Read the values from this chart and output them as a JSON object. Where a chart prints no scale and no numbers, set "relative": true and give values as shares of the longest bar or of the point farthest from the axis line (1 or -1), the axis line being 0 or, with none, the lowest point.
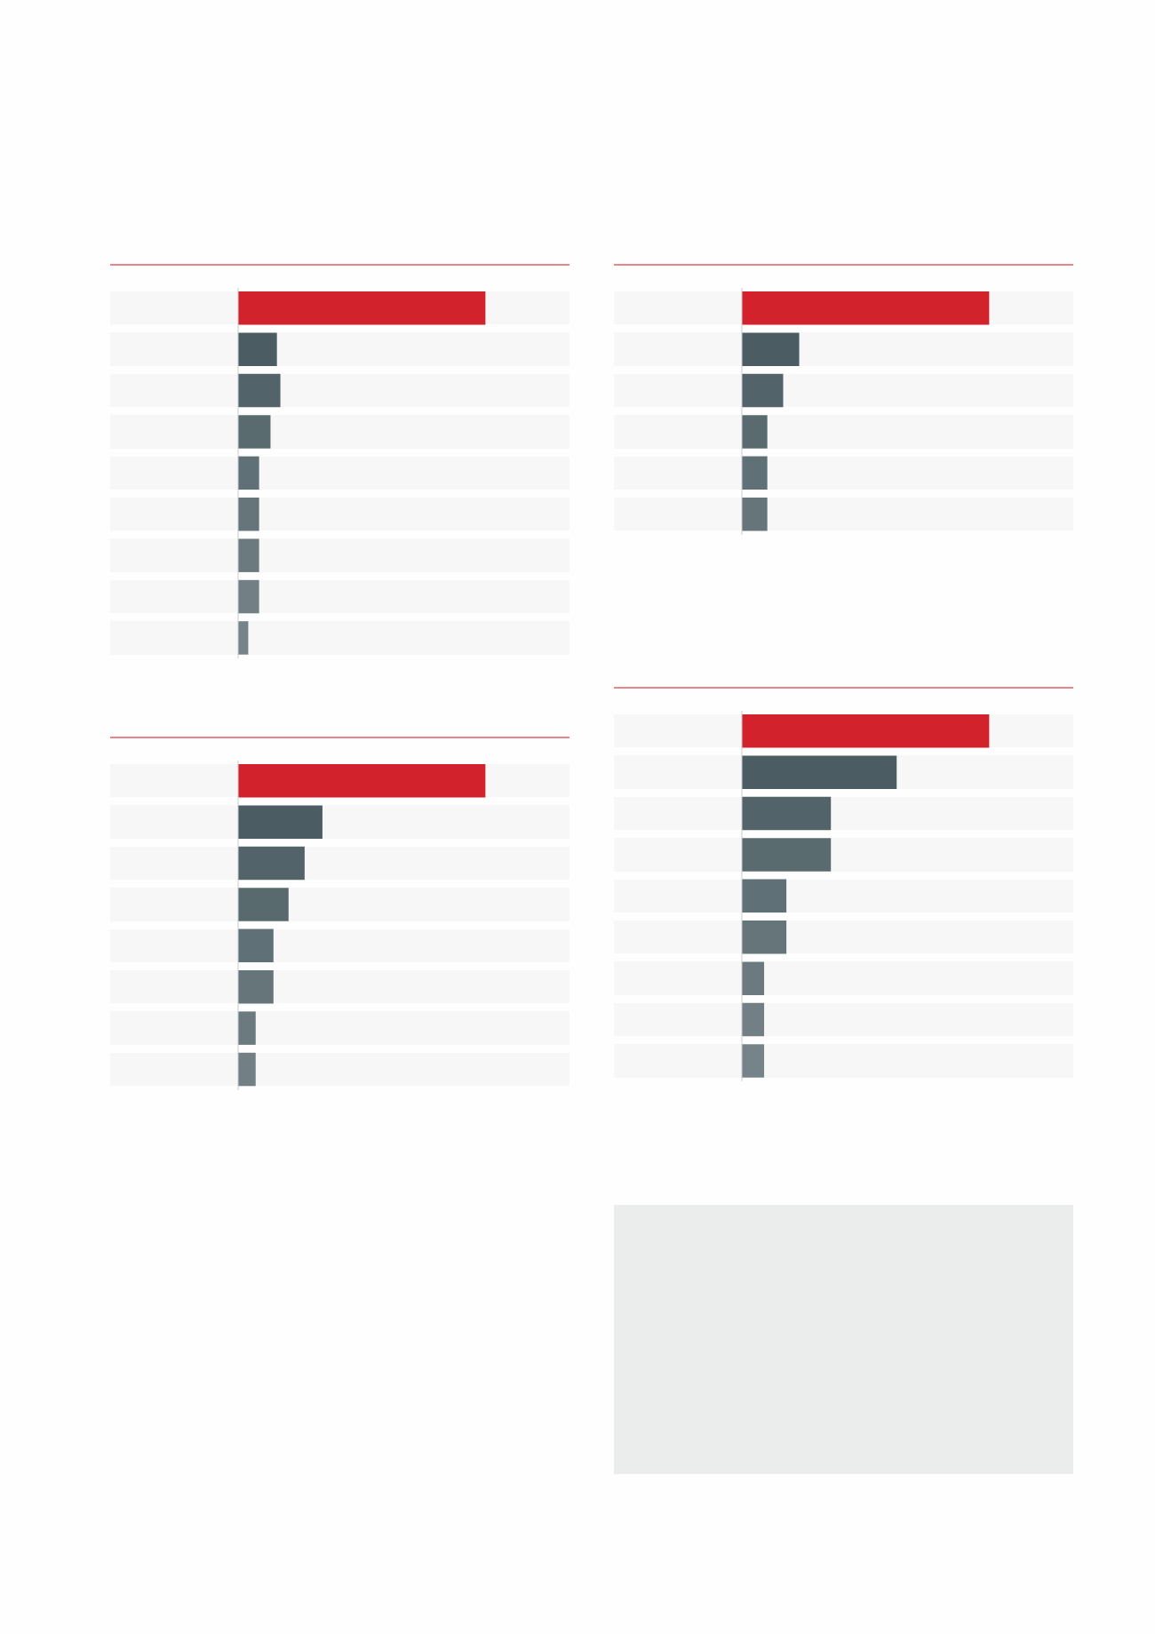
{
  "chart_data": [
    {
      "type": "bar",
      "orientation": "horizontal",
      "relative": true,
      "categories": [
        null,
        null,
        null,
        null,
        null,
        null,
        null,
        null,
        null
      ],
      "values": [
        1,
        0.157,
        0.171,
        0.131,
        0.085,
        0.085,
        0.085,
        0.085,
        0.041
      ],
      "colors": [
        "#d2232d",
        "#4b5c62",
        "#52646a",
        "#5a6b70",
        "#5f7176",
        "#657579",
        "#6b7a7f",
        "#728085",
        "#748488"
      ]
    },
    {
      "type": "bar",
      "orientation": "horizontal",
      "relative": true,
      "categories": [
        null,
        null,
        null,
        null,
        null,
        null
      ],
      "values": [
        1,
        0.232,
        0.167,
        0.103,
        0.103,
        0.103
      ],
      "colors": [
        "#d2232d",
        "#4b5c62",
        "#52646a",
        "#5a6b70",
        "#5f7176",
        "#657579"
      ]
    },
    {
      "type": "bar",
      "orientation": "horizontal",
      "relative": true,
      "categories": [
        null,
        null,
        null,
        null,
        null,
        null,
        null,
        null,
        null
      ],
      "values": [
        1,
        0.626,
        0.36,
        0.36,
        0.18,
        0.18,
        0.09,
        0.09,
        0.09
      ],
      "colors": [
        "#d2232d",
        "#4b5c62",
        "#52646a",
        "#5a6b70",
        "#5f7176",
        "#657579",
        "#6b7a7f",
        "#728085",
        "#748488"
      ]
    },
    {
      "type": "bar",
      "orientation": "horizontal",
      "relative": true,
      "categories": [
        null,
        null,
        null,
        null,
        null,
        null,
        null,
        null
      ],
      "values": [
        1,
        0.341,
        0.269,
        0.204,
        0.143,
        0.143,
        0.071,
        0.071
      ],
      "colors": [
        "#d2232d",
        "#4b5c62",
        "#52646a",
        "#586a6e",
        "#5f7176",
        "#657579",
        "#6b7a7f",
        "#728085"
      ]
    }
  ]
}
